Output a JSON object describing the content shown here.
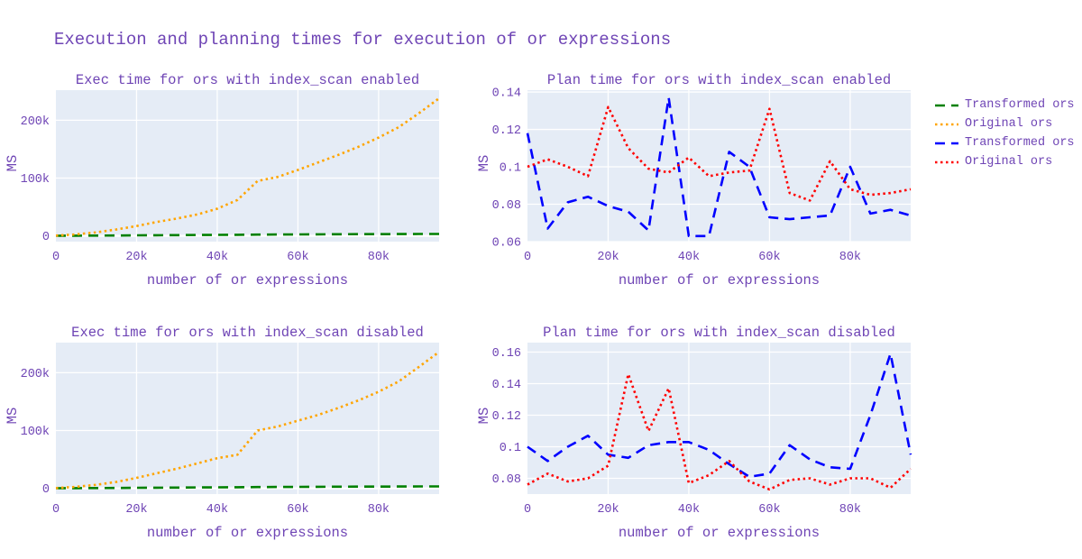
{
  "title": "Execution and planning times for execution of or expressions",
  "colors": {
    "text": "#6f45b5",
    "plot_background": "#e5ecf6",
    "gridline": "#ffffff",
    "transformed_exec": "#008000",
    "original_exec": "#ffa500",
    "transformed_plan": "#0000ff",
    "original_plan": "#ff0000"
  },
  "legend": {
    "position": "right",
    "items": [
      {
        "label": "Transformed ors",
        "color": "#008000",
        "dash": "dash"
      },
      {
        "label": "Original ors",
        "color": "#ffa500",
        "dash": "dot"
      },
      {
        "label": "Transformed ors",
        "color": "#0000ff",
        "dash": "dash"
      },
      {
        "label": "Original ors",
        "color": "#ff0000",
        "dash": "dot"
      }
    ]
  },
  "chart_data": [
    {
      "type": "line",
      "title": "Exec time for ors with index_scan enabled",
      "xlabel": "number of or expressions",
      "ylabel": "MS",
      "grid": true,
      "zeroline": true,
      "xlim": [
        0,
        95000
      ],
      "ylim": [
        -10000,
        252000
      ],
      "xtick_vals": [
        0,
        20000,
        40000,
        60000,
        80000
      ],
      "xtick_labels": [
        "0",
        "20k",
        "40k",
        "60k",
        "80k"
      ],
      "ytick_vals": [
        0,
        100000,
        200000
      ],
      "ytick_labels": [
        "0",
        "100k",
        "200k"
      ],
      "x": [
        0,
        5000,
        10000,
        15000,
        20000,
        25000,
        30000,
        35000,
        40000,
        45000,
        50000,
        55000,
        60000,
        65000,
        70000,
        75000,
        80000,
        85000,
        90000,
        95000
      ],
      "series": [
        {
          "name": "Transformed ors",
          "color": "#008000",
          "dash": "dash",
          "values": [
            100,
            250,
            450,
            650,
            900,
            1100,
            1300,
            1500,
            1700,
            1900,
            2100,
            2300,
            2500,
            2700,
            2800,
            2900,
            3000,
            3100,
            3200,
            3300
          ]
        },
        {
          "name": "Original ors",
          "color": "#ffa500",
          "dash": "dot",
          "values": [
            400,
            2500,
            6000,
            11000,
            17000,
            24000,
            30000,
            37000,
            47000,
            62000,
            95000,
            102000,
            114000,
            127000,
            140000,
            154000,
            170000,
            188000,
            212000,
            238000
          ]
        }
      ]
    },
    {
      "type": "line",
      "title": "Plan time for ors with index_scan enabled",
      "xlabel": "number of or expressions",
      "ylabel": "MS",
      "grid": true,
      "zeroline": false,
      "xlim": [
        0,
        95000
      ],
      "ylim": [
        0.06,
        0.141
      ],
      "xtick_vals": [
        0,
        20000,
        40000,
        60000,
        80000
      ],
      "xtick_labels": [
        "0",
        "20k",
        "40k",
        "60k",
        "80k"
      ],
      "ytick_vals": [
        0.06,
        0.08,
        0.1,
        0.12,
        0.14
      ],
      "ytick_labels": [
        "0.06",
        "0.08",
        "0.1",
        "0.12",
        "0.14"
      ],
      "x": [
        0,
        5000,
        10000,
        15000,
        20000,
        25000,
        30000,
        35000,
        40000,
        45000,
        50000,
        55000,
        60000,
        65000,
        70000,
        75000,
        80000,
        85000,
        90000,
        95000
      ],
      "series": [
        {
          "name": "Transformed ors",
          "color": "#0000ff",
          "dash": "dash",
          "values": [
            0.118,
            0.067,
            0.081,
            0.084,
            0.079,
            0.076,
            0.066,
            0.137,
            0.063,
            0.063,
            0.108,
            0.1,
            0.073,
            0.072,
            0.073,
            0.074,
            0.1,
            0.075,
            0.077,
            0.074
          ]
        },
        {
          "name": "Original ors",
          "color": "#ff0000",
          "dash": "dot",
          "values": [
            0.1,
            0.104,
            0.1,
            0.095,
            0.132,
            0.11,
            0.099,
            0.097,
            0.105,
            0.095,
            0.097,
            0.098,
            0.131,
            0.086,
            0.082,
            0.103,
            0.088,
            0.085,
            0.086,
            0.088
          ]
        }
      ]
    },
    {
      "type": "line",
      "title": "Exec time for ors with index_scan disabled",
      "xlabel": "number of or expressions",
      "ylabel": "MS",
      "grid": true,
      "zeroline": true,
      "xlim": [
        0,
        95000
      ],
      "ylim": [
        -10000,
        252000
      ],
      "xtick_vals": [
        0,
        20000,
        40000,
        60000,
        80000
      ],
      "xtick_labels": [
        "0",
        "20k",
        "40k",
        "60k",
        "80k"
      ],
      "ytick_vals": [
        0,
        100000,
        200000
      ],
      "ytick_labels": [
        "0",
        "100k",
        "200k"
      ],
      "x": [
        0,
        5000,
        10000,
        15000,
        20000,
        25000,
        30000,
        35000,
        40000,
        45000,
        50000,
        55000,
        60000,
        65000,
        70000,
        75000,
        80000,
        85000,
        90000,
        95000
      ],
      "series": [
        {
          "name": "Transformed ors",
          "color": "#008000",
          "dash": "dash",
          "values": [
            100,
            250,
            450,
            650,
            900,
            1100,
            1300,
            1500,
            1700,
            1900,
            2100,
            2300,
            2500,
            2700,
            2800,
            2900,
            3000,
            3100,
            3200,
            3300
          ]
        },
        {
          "name": "Original ors",
          "color": "#ffa500",
          "dash": "dot",
          "values": [
            400,
            2500,
            6000,
            11000,
            18000,
            26000,
            34000,
            43000,
            52000,
            58000,
            100000,
            107000,
            117000,
            127000,
            139000,
            152000,
            167000,
            185000,
            210000,
            236000
          ]
        }
      ]
    },
    {
      "type": "line",
      "title": "Plan time for ors with index_scan disabled",
      "xlabel": "number of or expressions",
      "ylabel": "MS",
      "grid": true,
      "zeroline": false,
      "xlim": [
        0,
        95000
      ],
      "ylim": [
        0.07,
        0.166
      ],
      "xtick_vals": [
        0,
        20000,
        40000,
        60000,
        80000
      ],
      "xtick_labels": [
        "0",
        "20k",
        "40k",
        "60k",
        "80k"
      ],
      "ytick_vals": [
        0.08,
        0.1,
        0.12,
        0.14,
        0.16
      ],
      "ytick_labels": [
        "0.08",
        "0.1",
        "0.12",
        "0.14",
        "0.16"
      ],
      "x": [
        0,
        5000,
        10000,
        15000,
        20000,
        25000,
        30000,
        35000,
        40000,
        45000,
        50000,
        55000,
        60000,
        65000,
        70000,
        75000,
        80000,
        85000,
        90000,
        95000
      ],
      "series": [
        {
          "name": "Transformed ors",
          "color": "#0000ff",
          "dash": "dash",
          "values": [
            0.1,
            0.091,
            0.1,
            0.107,
            0.095,
            0.093,
            0.101,
            0.103,
            0.103,
            0.098,
            0.089,
            0.081,
            0.083,
            0.101,
            0.092,
            0.087,
            0.086,
            0.12,
            0.159,
            0.095
          ]
        },
        {
          "name": "Original ors",
          "color": "#ff0000",
          "dash": "dot",
          "values": [
            0.076,
            0.083,
            0.078,
            0.08,
            0.088,
            0.146,
            0.11,
            0.137,
            0.077,
            0.082,
            0.091,
            0.078,
            0.073,
            0.079,
            0.08,
            0.076,
            0.08,
            0.08,
            0.074,
            0.086
          ]
        }
      ]
    }
  ]
}
